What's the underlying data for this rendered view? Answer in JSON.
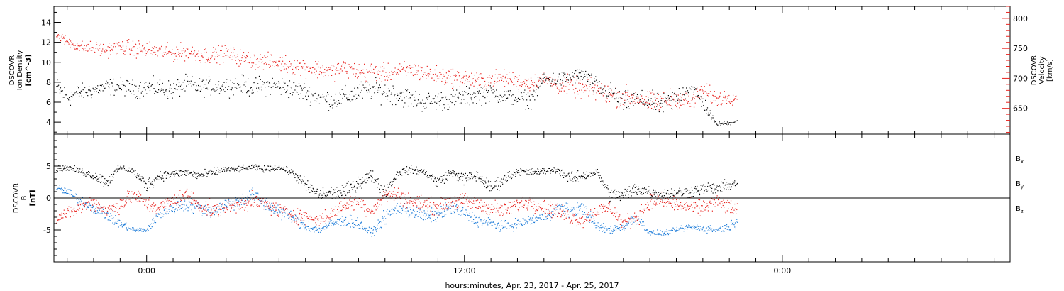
{
  "colors": {
    "density": "#000000",
    "velocity": "#e8231f",
    "bx": "#000000",
    "by": "#1a7ad8",
    "bz": "#e8231f"
  },
  "x_axis": {
    "label": "hours:minutes, Apr. 23, 2017 - Apr. 25, 2017",
    "tick_labels": [
      {
        "hour": 0,
        "text": "0:00"
      },
      {
        "hour": 12,
        "text": "12:00"
      },
      {
        "hour": 24,
        "text": "0:00"
      }
    ],
    "range_hours": [
      -3.5,
      32.6
    ]
  },
  "chart_data": [
    {
      "type": "scatter",
      "panel": "plasma",
      "title": "",
      "xlabel": "hours:minutes, Apr. 23, 2017 - Apr. 25, 2017",
      "ylabel_left": [
        "DSCOVR",
        "Ion Density",
        "[cm^-3]"
      ],
      "ylabel_right": [
        "DSCOVR",
        "Velocity",
        "[km/s]"
      ],
      "ylim_left": [
        2.8,
        15.6
      ],
      "ylim_right": [
        607,
        820
      ],
      "left_ticks": [
        "4",
        "6",
        "8",
        "10",
        "12",
        "14"
      ],
      "right_ticks": [
        "650",
        "700",
        "750",
        "800"
      ],
      "series": [
        {
          "name": "Ion Density",
          "axis": "left",
          "x": [
            -3.4,
            -3.0,
            -2.5,
            -2.0,
            -1.5,
            -1.0,
            -0.5,
            0.0,
            0.5,
            1.0,
            1.5,
            2.0,
            2.5,
            3.0,
            3.5,
            4.0,
            4.5,
            5.0,
            5.5,
            6.0,
            6.5,
            7.0,
            7.5,
            8.0,
            8.5,
            9.0,
            9.5,
            10.0,
            10.5,
            11.0,
            11.5,
            12.0,
            12.5,
            13.0,
            13.5,
            14.0,
            14.5,
            15.0,
            15.5,
            16.0,
            16.5,
            17.0,
            17.5,
            18.0,
            18.5,
            19.0,
            19.5,
            20.0,
            20.5,
            21.0,
            21.5,
            22.0,
            22.3
          ],
          "y": [
            7.5,
            6.5,
            7.0,
            7.2,
            7.5,
            7.6,
            7.3,
            7.5,
            7.4,
            7.2,
            7.8,
            7.5,
            7.6,
            7.6,
            7.8,
            7.5,
            7.7,
            7.6,
            7.3,
            7.0,
            6.5,
            6.2,
            6.5,
            7.0,
            7.3,
            7.0,
            6.8,
            6.3,
            6.0,
            6.2,
            6.2,
            6.5,
            6.8,
            7.0,
            6.6,
            6.4,
            6.3,
            8.3,
            8.2,
            8.5,
            8.8,
            7.5,
            7.0,
            6.0,
            6.2,
            6.0,
            5.7,
            6.5,
            7.5,
            6.0,
            3.8,
            3.9,
            4.2
          ],
          "spread": [
            1.4,
            1.6,
            1.2,
            1.2,
            1.3,
            1.2,
            1.3,
            1.3,
            1.4,
            1.4,
            1.3,
            1.3,
            1.3,
            1.3,
            1.3,
            1.4,
            1.5,
            1.5,
            1.5,
            1.4,
            1.3,
            1.4,
            1.5,
            1.6,
            1.5,
            1.6,
            1.6,
            1.5,
            1.4,
            1.4,
            1.5,
            1.4,
            1.5,
            1.4,
            1.2,
            1.2,
            1.3,
            1.2,
            1.2,
            1.1,
            1.1,
            1.4,
            1.4,
            1.5,
            1.5,
            1.5,
            1.6,
            1.5,
            1.5,
            1.3,
            0.3,
            0.3,
            0.4
          ]
        },
        {
          "name": "Velocity",
          "axis": "right",
          "x": [
            -3.4,
            -3.0,
            -2.5,
            -2.0,
            -1.5,
            -1.0,
            -0.5,
            0.0,
            0.5,
            1.0,
            1.5,
            2.0,
            2.5,
            3.0,
            3.5,
            4.0,
            4.5,
            5.0,
            5.5,
            6.0,
            6.5,
            7.0,
            7.5,
            8.0,
            8.5,
            9.0,
            9.5,
            10.0,
            10.5,
            11.0,
            11.5,
            12.0,
            12.5,
            13.0,
            13.5,
            14.0,
            14.5,
            15.0,
            15.5,
            16.0,
            16.5,
            17.0,
            17.5,
            18.0,
            18.5,
            19.0,
            19.5,
            20.0,
            20.5,
            21.0,
            21.5,
            22.0,
            22.3
          ],
          "y": [
            770,
            762,
            752,
            750,
            748,
            752,
            750,
            748,
            745,
            742,
            745,
            740,
            738,
            742,
            735,
            730,
            728,
            725,
            722,
            718,
            715,
            712,
            718,
            710,
            712,
            708,
            710,
            715,
            708,
            705,
            702,
            700,
            695,
            698,
            700,
            696,
            692,
            700,
            690,
            688,
            682,
            680,
            672,
            670,
            668,
            660,
            662,
            668,
            658,
            680,
            665,
            670,
            668
          ],
          "spread": [
            12,
            14,
            15,
            16,
            18,
            18,
            20,
            20,
            20,
            20,
            20,
            20,
            20,
            20,
            20,
            20,
            20,
            20,
            22,
            22,
            22,
            22,
            22,
            22,
            22,
            22,
            22,
            22,
            22,
            22,
            22,
            22,
            22,
            22,
            20,
            20,
            20,
            20,
            22,
            24,
            26,
            26,
            26,
            26,
            26,
            24,
            24,
            24,
            24,
            22,
            20,
            18,
            16
          ]
        }
      ]
    },
    {
      "type": "scatter",
      "panel": "magnetic",
      "title": "",
      "xlabel": "hours:minutes, Apr. 23, 2017 - Apr. 25, 2017",
      "ylabel_left": [
        "DSCOVR",
        "B",
        "[nT]"
      ],
      "ylim": [
        -10,
        10
      ],
      "left_ticks": [
        "-5",
        "0",
        "5"
      ],
      "zero_line": true,
      "legend_placement": "right",
      "series": [
        {
          "name": "Bx",
          "legend_main": "B",
          "legend_sub": "x",
          "x": [
            -3.4,
            -3.0,
            -2.5,
            -2.0,
            -1.5,
            -1.0,
            -0.5,
            0.0,
            0.5,
            1.0,
            1.5,
            2.0,
            2.5,
            3.0,
            3.5,
            4.0,
            4.5,
            5.0,
            5.5,
            6.0,
            6.5,
            7.0,
            7.5,
            8.0,
            8.5,
            9.0,
            9.5,
            10.0,
            10.5,
            11.0,
            11.5,
            12.0,
            12.5,
            13.0,
            13.5,
            14.0,
            14.5,
            15.0,
            15.5,
            16.0,
            16.5,
            17.0,
            17.5,
            18.0,
            18.5,
            19.0,
            19.5,
            20.0,
            20.5,
            21.0,
            21.5,
            22.0,
            22.3
          ],
          "y": [
            4.5,
            4.8,
            4.2,
            3.5,
            2.5,
            4.8,
            4.2,
            2.0,
            3.5,
            3.8,
            4.0,
            3.5,
            4.0,
            4.5,
            4.5,
            4.8,
            4.5,
            4.8,
            4.0,
            2.0,
            0.5,
            0.8,
            1.0,
            2.5,
            3.5,
            1.0,
            4.0,
            4.5,
            4.0,
            2.5,
            4.0,
            3.0,
            3.5,
            1.5,
            3.0,
            4.2,
            4.0,
            4.2,
            4.5,
            3.0,
            3.5,
            4.0,
            0.5,
            0.5,
            1.5,
            1.0,
            0.5,
            0.8,
            1.0,
            1.5,
            1.5,
            2.0,
            2.5
          ],
          "spread": [
            0.8,
            0.6,
            0.8,
            1.0,
            1.5,
            0.6,
            0.8,
            1.6,
            1.2,
            1.0,
            1.0,
            1.2,
            1.0,
            0.7,
            0.7,
            0.6,
            0.7,
            0.6,
            0.8,
            1.6,
            1.6,
            1.6,
            1.6,
            1.6,
            1.4,
            1.6,
            1.0,
            0.8,
            1.0,
            1.4,
            1.0,
            1.4,
            1.2,
            1.6,
            1.4,
            0.8,
            1.0,
            0.8,
            0.8,
            1.4,
            1.2,
            1.0,
            1.6,
            1.6,
            1.6,
            1.4,
            1.4,
            1.4,
            1.4,
            1.4,
            1.4,
            1.2,
            1.2
          ]
        },
        {
          "name": "By",
          "legend_main": "B",
          "legend_sub": "y",
          "x": [
            -3.4,
            -3.0,
            -2.5,
            -2.0,
            -1.5,
            -1.0,
            -0.5,
            0.0,
            0.5,
            1.0,
            1.5,
            2.0,
            2.5,
            3.0,
            3.5,
            4.0,
            4.5,
            5.0,
            5.5,
            6.0,
            6.5,
            7.0,
            7.5,
            8.0,
            8.5,
            9.0,
            9.5,
            10.0,
            10.5,
            11.0,
            11.5,
            12.0,
            12.5,
            13.0,
            13.5,
            14.0,
            14.5,
            15.0,
            15.5,
            16.0,
            16.5,
            17.0,
            17.5,
            18.0,
            18.5,
            19.0,
            19.5,
            20.0,
            20.5,
            21.0,
            21.5,
            22.0,
            22.3
          ],
          "y": [
            1.5,
            1.0,
            -0.5,
            -1.5,
            -2.5,
            -4.0,
            -5.0,
            -5.0,
            -2.5,
            -1.5,
            -1.0,
            -1.5,
            -2.0,
            -1.0,
            -0.5,
            0.5,
            -1.0,
            -2.0,
            -3.0,
            -4.5,
            -5.0,
            -4.0,
            -3.5,
            -4.0,
            -5.5,
            -3.0,
            -1.5,
            -2.0,
            -3.0,
            -2.5,
            -1.5,
            -2.5,
            -3.5,
            -4.0,
            -4.5,
            -4.0,
            -3.5,
            -3.0,
            -1.5,
            -2.0,
            -1.5,
            -4.5,
            -5.0,
            -4.5,
            -3.0,
            -5.5,
            -5.5,
            -5.0,
            -4.5,
            -4.8,
            -5.0,
            -4.5,
            -3.5
          ],
          "spread": [
            1.0,
            1.0,
            1.2,
            1.2,
            1.4,
            1.2,
            0.6,
            0.6,
            1.4,
            1.4,
            1.6,
            1.6,
            1.6,
            1.6,
            1.6,
            1.6,
            1.6,
            1.6,
            1.4,
            1.0,
            0.8,
            1.2,
            1.4,
            1.4,
            0.8,
            1.6,
            1.6,
            1.6,
            1.6,
            1.6,
            1.6,
            1.6,
            1.4,
            1.2,
            1.2,
            1.2,
            1.2,
            1.4,
            1.6,
            1.6,
            1.6,
            1.2,
            1.0,
            1.0,
            1.6,
            0.6,
            0.6,
            0.6,
            0.8,
            0.8,
            0.8,
            1.0,
            1.4
          ]
        },
        {
          "name": "Bz",
          "legend_main": "B",
          "legend_sub": "z",
          "x": [
            -3.4,
            -3.0,
            -2.5,
            -2.0,
            -1.5,
            -1.0,
            -0.5,
            0.0,
            0.5,
            1.0,
            1.5,
            2.0,
            2.5,
            3.0,
            3.5,
            4.0,
            4.5,
            5.0,
            5.5,
            6.0,
            6.5,
            7.0,
            7.5,
            8.0,
            8.5,
            9.0,
            9.5,
            10.0,
            10.5,
            11.0,
            11.5,
            12.0,
            12.5,
            13.0,
            13.5,
            14.0,
            14.5,
            15.0,
            15.5,
            16.0,
            16.5,
            17.0,
            17.5,
            18.0,
            18.5,
            19.0,
            19.5,
            20.0,
            20.5,
            21.0,
            21.5,
            22.0,
            22.3
          ],
          "y": [
            -3.0,
            -2.5,
            -1.5,
            -0.5,
            -2.0,
            -1.0,
            0.5,
            -1.0,
            -1.5,
            -0.5,
            0.5,
            -1.0,
            -2.0,
            -1.5,
            -1.0,
            -0.5,
            -1.0,
            -2.0,
            -2.5,
            -3.0,
            -3.5,
            -2.5,
            -1.0,
            -0.5,
            -2.0,
            0.5,
            0.5,
            -0.5,
            -1.0,
            -1.5,
            -0.5,
            -0.5,
            -1.0,
            -1.5,
            -2.0,
            -1.0,
            -0.5,
            -1.5,
            -2.0,
            -3.0,
            -3.5,
            -2.0,
            -1.5,
            -4.0,
            -3.0,
            -0.5,
            -0.5,
            -1.0,
            -1.5,
            -1.5,
            -0.5,
            -1.5,
            -2.0
          ],
          "spread": [
            1.4,
            1.4,
            1.6,
            1.6,
            1.6,
            1.8,
            1.8,
            1.8,
            1.8,
            1.8,
            1.8,
            1.8,
            1.8,
            1.8,
            1.8,
            1.8,
            1.8,
            1.8,
            1.8,
            1.6,
            1.4,
            1.6,
            1.8,
            1.8,
            1.8,
            1.8,
            1.8,
            1.8,
            1.8,
            1.8,
            1.8,
            1.8,
            1.8,
            1.8,
            1.8,
            1.8,
            1.8,
            1.8,
            1.8,
            1.8,
            1.6,
            1.8,
            1.8,
            1.6,
            1.8,
            1.8,
            1.8,
            1.8,
            1.8,
            1.8,
            1.8,
            1.8,
            1.8
          ]
        }
      ]
    }
  ]
}
